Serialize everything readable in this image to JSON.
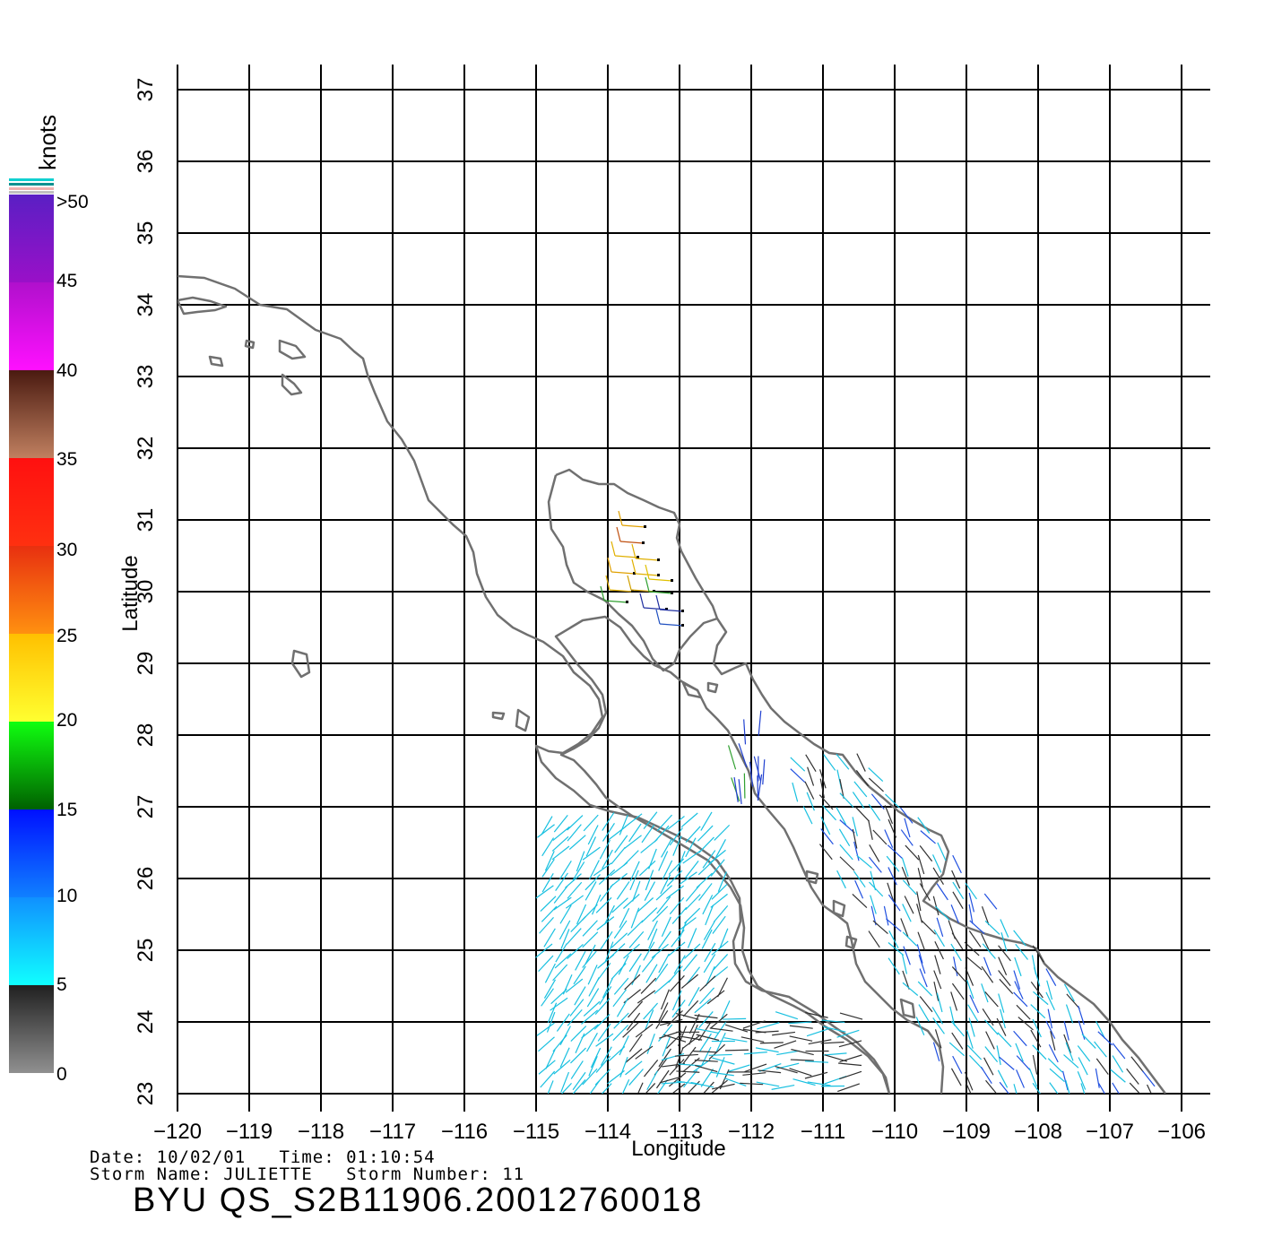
{
  "map": {
    "axis_x_label": "Longitude",
    "axis_y_label": "Latitude",
    "lon_ticks": [
      "-120",
      "-119",
      "-118",
      "-117",
      "-116",
      "-115",
      "-114",
      "-113",
      "-112",
      "-111",
      "-110",
      "-109",
      "-108",
      "-107",
      "-106"
    ],
    "lat_ticks": [
      "23",
      "24",
      "25",
      "26",
      "27",
      "28",
      "29",
      "30",
      "31",
      "32",
      "33",
      "34",
      "35",
      "36",
      "37"
    ],
    "lon_range": [
      -120,
      -106
    ],
    "lat_range": [
      23,
      37
    ],
    "grid": true,
    "coastline_color": "#707070"
  },
  "legend": {
    "unit": "knots",
    "labels": [
      ">50",
      "45",
      "40",
      "35",
      "30",
      "25",
      "20",
      "15",
      "10",
      "5",
      "0"
    ],
    "bands": [
      {
        "from": 50,
        "to": 45,
        "top": "#5a1fc4",
        "bottom": "#9a10c8"
      },
      {
        "from": 45,
        "to": 40,
        "top": "#b010cc",
        "bottom": "#ff10ff"
      },
      {
        "from": 40,
        "to": 35,
        "top": "#4a1a10",
        "bottom": "#c08060"
      },
      {
        "from": 35,
        "to": 30,
        "top": "#ff1010",
        "bottom": "#ff3010"
      },
      {
        "from": 30,
        "to": 25,
        "top": "#e83010",
        "bottom": "#ff9010"
      },
      {
        "from": 25,
        "to": 20,
        "top": "#ffc000",
        "bottom": "#ffff30"
      },
      {
        "from": 20,
        "to": 15,
        "top": "#10ff10",
        "bottom": "#006000"
      },
      {
        "from": 15,
        "to": 10,
        "top": "#0010ff",
        "bottom": "#1080ff"
      },
      {
        "from": 10,
        "to": 5,
        "top": "#1090ff",
        "bottom": "#10ffff"
      },
      {
        "from": 5,
        "to": 0,
        "top": "#202020",
        "bottom": "#909090"
      }
    ]
  },
  "footer": {
    "date_line": "Date: 10/02/01   Time: 01:10:54",
    "storm_line": "Storm Name: JULIETTE   Storm Number: 11",
    "title": "BYU QS_S2B11906.20012760018"
  }
}
